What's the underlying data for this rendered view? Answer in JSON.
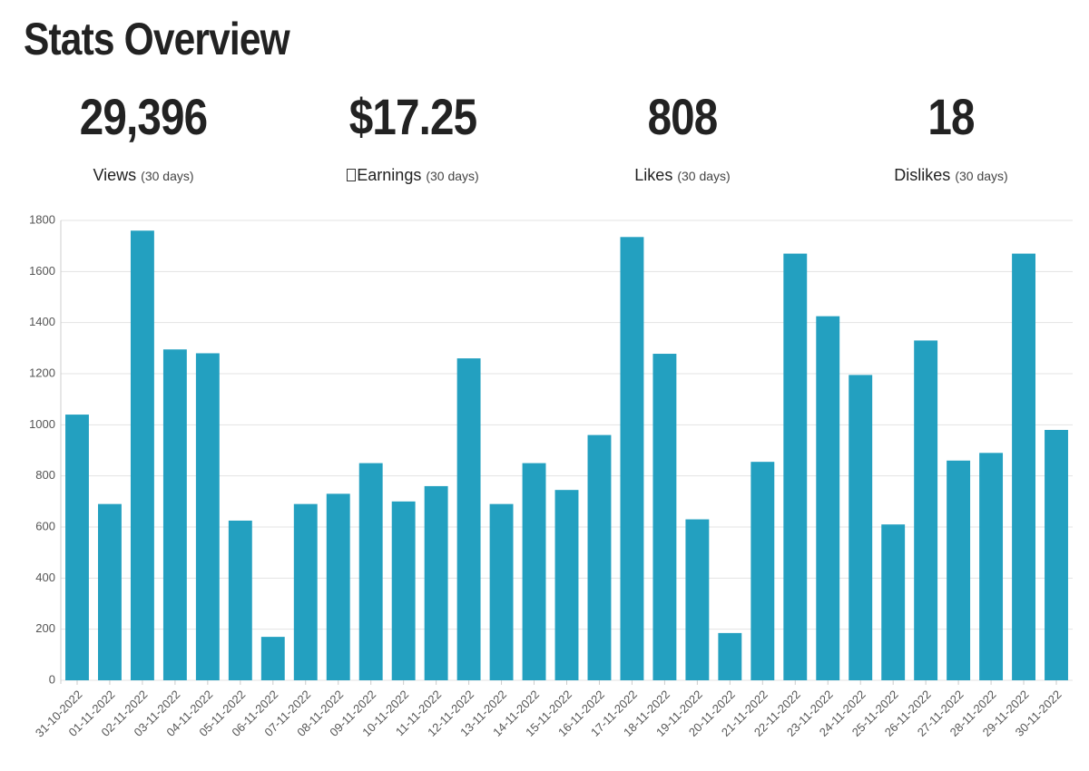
{
  "header": {
    "title": "Stats Overview"
  },
  "stats": [
    {
      "value": "29,396",
      "label": "Views",
      "period": "(30 days)"
    },
    {
      "value": "$17.25",
      "label": "Earnings",
      "period": "(30 days)"
    },
    {
      "value": "808",
      "label": "Likes",
      "period": "(30 days)"
    },
    {
      "value": "18",
      "label": "Dislikes",
      "period": "(30 days)"
    }
  ],
  "chart_data": {
    "type": "bar",
    "color": "#23a0c0",
    "grid": true,
    "categories": [
      "31-10-2022",
      "01-11-2022",
      "02-11-2022",
      "03-11-2022",
      "04-11-2022",
      "05-11-2022",
      "06-11-2022",
      "07-11-2022",
      "08-11-2022",
      "09-11-2022",
      "10-11-2022",
      "11-11-2022",
      "12-11-2022",
      "13-11-2022",
      "14-11-2022",
      "15-11-2022",
      "16-11-2022",
      "17-11-2022",
      "18-11-2022",
      "19-11-2022",
      "20-11-2022",
      "21-11-2022",
      "22-11-2022",
      "23-11-2022",
      "24-11-2022",
      "25-11-2022",
      "26-11-2022",
      "27-11-2022",
      "28-11-2022",
      "29-11-2022",
      "30-11-2022"
    ],
    "values": [
      1040,
      690,
      1760,
      1295,
      1280,
      625,
      170,
      690,
      730,
      850,
      700,
      760,
      1260,
      690,
      850,
      745,
      960,
      1735,
      1278,
      630,
      185,
      855,
      1670,
      1425,
      1195,
      610,
      1330,
      860,
      890,
      1670,
      980
    ],
    "ylim": [
      0,
      1800
    ],
    "yticks": [
      0,
      200,
      400,
      600,
      800,
      1000,
      1200,
      1400,
      1600,
      1800
    ]
  }
}
